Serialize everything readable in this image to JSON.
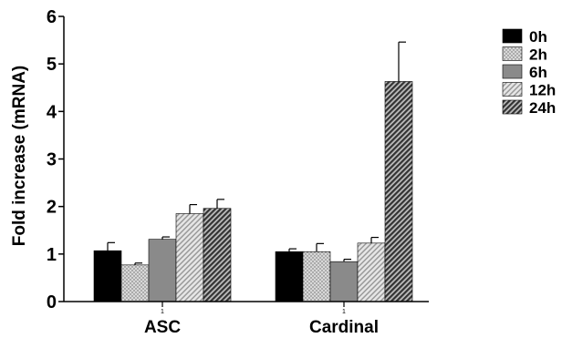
{
  "chart_data": {
    "type": "bar",
    "categories": [
      "ASC",
      "Cardinal"
    ],
    "category_sublabels": [
      "1",
      "1"
    ],
    "ylabel": "Fold increase (mRNA)",
    "ylim": [
      0,
      6
    ],
    "yticks": [
      "0",
      "1",
      "2",
      "3",
      "4",
      "5",
      "6"
    ],
    "legend_position": "right",
    "series": [
      {
        "name": "0h",
        "values": [
          1.07,
          1.05
        ],
        "errors": [
          0.17,
          0.06
        ],
        "fill": "solid-black"
      },
      {
        "name": "2h",
        "values": [
          0.77,
          1.05
        ],
        "errors": [
          0.04,
          0.17
        ],
        "fill": "light-dots"
      },
      {
        "name": "6h",
        "values": [
          1.31,
          0.84
        ],
        "errors": [
          0.05,
          0.05
        ],
        "fill": "solid-gray"
      },
      {
        "name": "12h",
        "values": [
          1.85,
          1.23
        ],
        "errors": [
          0.19,
          0.12
        ],
        "fill": "light-diagonal"
      },
      {
        "name": "24h",
        "values": [
          1.96,
          4.63
        ],
        "errors": [
          0.19,
          0.83
        ],
        "fill": "dark-diagonal"
      }
    ]
  }
}
